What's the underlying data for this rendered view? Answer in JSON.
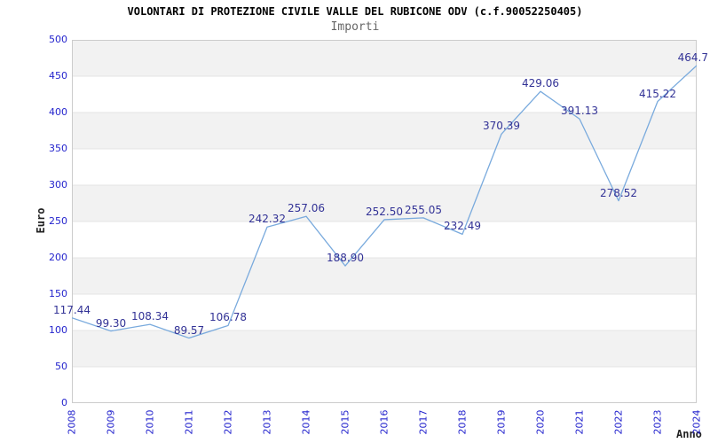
{
  "chart_data": {
    "type": "line",
    "title": "VOLONTARI DI PROTEZIONE CIVILE VALLE DEL RUBICONE ODV (c.f.90052250405)",
    "subtitle": "Importi",
    "xlabel": "Anno",
    "ylabel": "Euro",
    "x": [
      "2008",
      "2009",
      "2010",
      "2011",
      "2012",
      "2013",
      "2014",
      "2015",
      "2016",
      "2017",
      "2018",
      "2019",
      "2020",
      "2021",
      "2022",
      "2023",
      "2024"
    ],
    "values": [
      117.44,
      99.3,
      108.34,
      89.57,
      106.78,
      242.32,
      257.06,
      188.9,
      252.5,
      255.05,
      232.49,
      370.39,
      429.06,
      391.13,
      278.52,
      415.22,
      464.7
    ],
    "point_labels": [
      "117.44",
      "99.30",
      "108.34",
      "89.57",
      "106.78",
      "242.32",
      "257.06",
      "188.90",
      "252.50",
      "255.05",
      "232.49",
      "370.39",
      "429.06",
      "391.13",
      "278.52",
      "415.22",
      "464.7"
    ],
    "ylim": [
      0,
      500
    ],
    "y_tick_step": 50,
    "grid": "horizontal-alternating-bands",
    "legend": "none",
    "series_name": "Importi"
  },
  "colors": {
    "line": "#79aadd",
    "point_label": "#323296",
    "tick_label": "#2323cd",
    "band_gray": "#f2f2f2",
    "band_white": "#ffffff",
    "gridline": "#e4e4e4",
    "plot_border": "#cccccc",
    "title": "#000000",
    "subtitle": "#666666",
    "axis_name": "#222222"
  }
}
